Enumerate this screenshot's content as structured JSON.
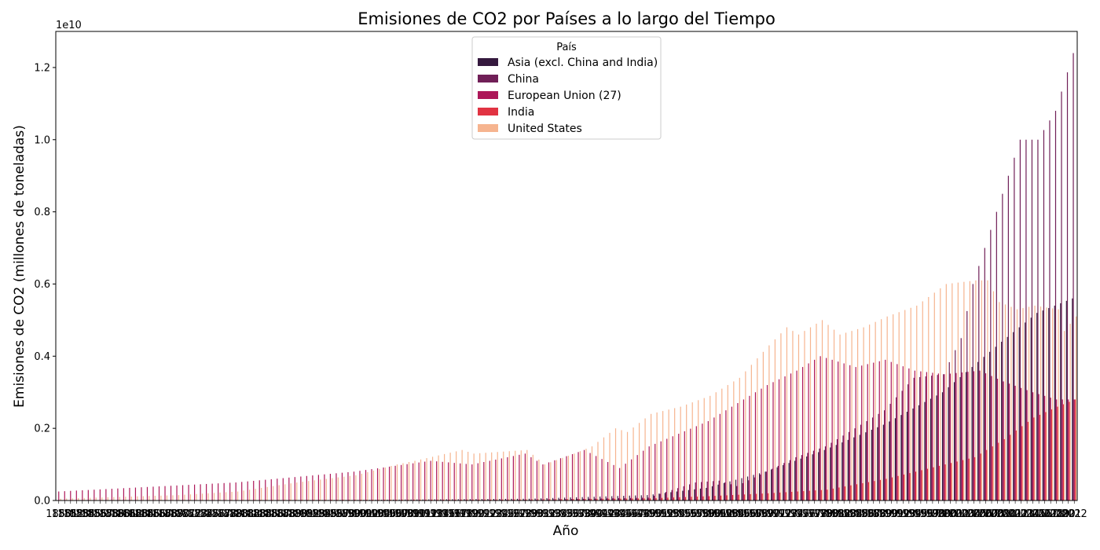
{
  "chart_data": {
    "type": "bar",
    "title": "Emisiones de CO2 por Países a lo largo del Tiempo",
    "xlabel": "Año",
    "ylabel": "Emisiones de CO2 (millones de toneladas)",
    "y_offset_text": "1e10",
    "ylim": [
      0,
      13000000000.0
    ],
    "yticks": [
      "0.0",
      "0.2",
      "0.4",
      "0.6",
      "0.8",
      "1.0",
      "1.2"
    ],
    "ytick_values": [
      0,
      2000000000.0,
      4000000000.0,
      6000000000.0,
      8000000000.0,
      10000000000.0,
      12000000000.0
    ],
    "x_first_year": 1850,
    "x_last_year": 2022,
    "grid": false,
    "legend": {
      "title": "País",
      "placement": "top-center",
      "entries": [
        "Asia (excl. China and India)",
        "China",
        "European Union (27)",
        "India",
        "United States"
      ]
    },
    "colors": [
      "#35193e",
      "#701f57",
      "#ad1759",
      "#e13342",
      "#f37651",
      "#f6b48f"
    ],
    "series": [
      {
        "name": "Asia (excl. China and India)",
        "color": "#35193e",
        "keyframes": [
          [
            1850,
            5000000.0
          ],
          [
            1900,
            15000000.0
          ],
          [
            1930,
            50000000.0
          ],
          [
            1950,
            150000000.0
          ],
          [
            1960,
            350000000.0
          ],
          [
            1970,
            800000000.0
          ],
          [
            1980,
            1400000000.0
          ],
          [
            1990,
            2100000000.0
          ],
          [
            2000,
            3000000000.0
          ],
          [
            2010,
            4400000000.0
          ],
          [
            2016,
            5200000000.0
          ],
          [
            2022,
            5600000000.0
          ]
        ]
      },
      {
        "name": "China",
        "color": "#701f57",
        "keyframes": [
          [
            1850,
            2000000.0
          ],
          [
            1900,
            5000000.0
          ],
          [
            1930,
            20000000.0
          ],
          [
            1950,
            80000000.0
          ],
          [
            1958,
            500000000.0
          ],
          [
            1962,
            550000000.0
          ],
          [
            1965,
            400000000.0
          ],
          [
            1970,
            800000000.0
          ],
          [
            1975,
            1200000000.0
          ],
          [
            1980,
            1500000000.0
          ],
          [
            1985,
            2000000000.0
          ],
          [
            1990,
            2500000000.0
          ],
          [
            1995,
            3400000000.0
          ],
          [
            2000,
            3500000000.0
          ],
          [
            2003,
            4500000000.0
          ],
          [
            2005,
            6000000000.0
          ],
          [
            2010,
            8500000000.0
          ],
          [
            2013,
            10000000000.0
          ],
          [
            2016,
            10000000000.0
          ],
          [
            2019,
            10800000000.0
          ],
          [
            2022,
            12400000000.0
          ]
        ]
      },
      {
        "name": "European Union (27)",
        "color": "#ad1759",
        "keyframes": [
          [
            1850,
            250000000.0
          ],
          [
            1880,
            500000000.0
          ],
          [
            1900,
            800000000.0
          ],
          [
            1913,
            1100000000.0
          ],
          [
            1920,
            1000000000.0
          ],
          [
            1929,
            1300000000.0
          ],
          [
            1932,
            1000000000.0
          ],
          [
            1939,
            1400000000.0
          ],
          [
            1945,
            900000000.0
          ],
          [
            1950,
            1500000000.0
          ],
          [
            1960,
            2200000000.0
          ],
          [
            1970,
            3200000000.0
          ],
          [
            1975,
            3600000000.0
          ],
          [
            1979,
            4000000000.0
          ],
          [
            1985,
            3700000000.0
          ],
          [
            1990,
            3900000000.0
          ],
          [
            1995,
            3600000000.0
          ],
          [
            2000,
            3500000000.0
          ],
          [
            2006,
            3600000000.0
          ],
          [
            2010,
            3300000000.0
          ],
          [
            2015,
            3000000000.0
          ],
          [
            2019,
            2800000000.0
          ],
          [
            2022,
            2800000000.0
          ]
        ]
      },
      {
        "name": "India",
        "color": "#e13342",
        "keyframes": [
          [
            1850,
            3000000.0
          ],
          [
            1900,
            20000000.0
          ],
          [
            1930,
            30000000.0
          ],
          [
            1950,
            60000000.0
          ],
          [
            1960,
            120000000.0
          ],
          [
            1970,
            200000000.0
          ],
          [
            1980,
            300000000.0
          ],
          [
            1990,
            600000000.0
          ],
          [
            2000,
            1000000000.0
          ],
          [
            2005,
            1200000000.0
          ],
          [
            2010,
            1700000000.0
          ],
          [
            2015,
            2300000000.0
          ],
          [
            2019,
            2600000000.0
          ],
          [
            2022,
            2800000000.0
          ]
        ]
      },
      {
        "name": "United States",
        "color": "#f6b48f",
        "keyframes": [
          [
            1850,
            50000000.0
          ],
          [
            1870,
            150000000.0
          ],
          [
            1880,
            250000000.0
          ],
          [
            1890,
            500000000.0
          ],
          [
            1900,
            700000000.0
          ],
          [
            1907,
            1000000000.0
          ],
          [
            1910,
            1100000000.0
          ],
          [
            1918,
            1400000000.0
          ],
          [
            1920,
            1300000000.0
          ],
          [
            1929,
            1400000000.0
          ],
          [
            1932,
            1000000000.0
          ],
          [
            1937,
            1300000000.0
          ],
          [
            1940,
            1500000000.0
          ],
          [
            1944,
            2000000000.0
          ],
          [
            1946,
            1900000000.0
          ],
          [
            1950,
            2400000000.0
          ],
          [
            1955,
            2600000000.0
          ],
          [
            1960,
            2900000000.0
          ],
          [
            1965,
            3400000000.0
          ],
          [
            1970,
            4300000000.0
          ],
          [
            1973,
            4800000000.0
          ],
          [
            1975,
            4600000000.0
          ],
          [
            1979,
            5000000000.0
          ],
          [
            1982,
            4600000000.0
          ],
          [
            1986,
            4800000000.0
          ],
          [
            1990,
            5100000000.0
          ],
          [
            1995,
            5400000000.0
          ],
          [
            2000,
            6000000000.0
          ],
          [
            2005,
            6100000000.0
          ],
          [
            2007,
            6100000000.0
          ],
          [
            2009,
            5500000000.0
          ],
          [
            2012,
            5300000000.0
          ],
          [
            2015,
            5400000000.0
          ],
          [
            2019,
            5300000000.0
          ],
          [
            2020,
            4700000000.0
          ],
          [
            2022,
            5100000000.0
          ]
        ]
      }
    ]
  }
}
